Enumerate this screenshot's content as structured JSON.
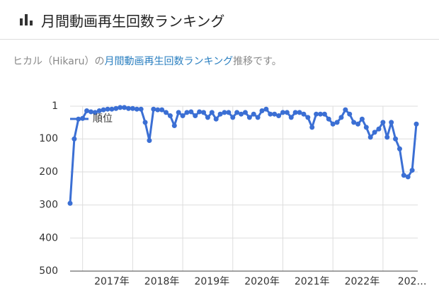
{
  "header": {
    "title": "月間動画再生回数ランキング"
  },
  "subtitle": {
    "before": "ヒカル（Hikaru）の",
    "link": "月間動画再生回数ランキング",
    "after": "推移です。"
  },
  "chart_data": {
    "type": "line",
    "categories": [
      null,
      null,
      null,
      null,
      null,
      null,
      null,
      null,
      null,
      null,
      "2017年",
      null,
      null,
      null,
      null,
      null,
      null,
      null,
      null,
      null,
      null,
      null,
      "2018年",
      null,
      null,
      null,
      null,
      null,
      null,
      null,
      null,
      null,
      null,
      null,
      "2019年",
      null,
      null,
      null,
      null,
      null,
      null,
      null,
      null,
      null,
      null,
      null,
      "2020年",
      null,
      null,
      null,
      null,
      null,
      null,
      null,
      null,
      null,
      null,
      null,
      "2021年",
      null,
      null,
      null,
      null,
      null,
      null,
      null,
      null,
      null,
      null,
      null,
      "2022年",
      null,
      null,
      null,
      null,
      null,
      null,
      null,
      null,
      null,
      null,
      null,
      "202…",
      null
    ],
    "series": [
      {
        "name": "順位",
        "color": "#3b6fd4",
        "values": [
          295,
          100,
          40,
          38,
          15,
          18,
          20,
          15,
          12,
          10,
          10,
          8,
          5,
          5,
          8,
          8,
          10,
          10,
          50,
          105,
          10,
          12,
          12,
          20,
          30,
          60,
          20,
          30,
          20,
          18,
          30,
          18,
          20,
          35,
          20,
          40,
          25,
          20,
          20,
          35,
          20,
          25,
          20,
          35,
          25,
          35,
          15,
          10,
          25,
          25,
          30,
          20,
          20,
          35,
          20,
          20,
          25,
          35,
          65,
          25,
          25,
          25,
          40,
          55,
          50,
          35,
          12,
          25,
          50,
          55,
          40,
          65,
          95,
          80,
          70,
          50,
          95,
          50,
          100,
          130,
          210,
          215,
          195,
          55
        ]
      }
    ],
    "ylim": [
      1,
      500
    ],
    "y_reversed": true,
    "yticks": [
      1,
      100,
      200,
      300,
      400,
      500
    ],
    "grid": true,
    "legend": "top-left"
  }
}
